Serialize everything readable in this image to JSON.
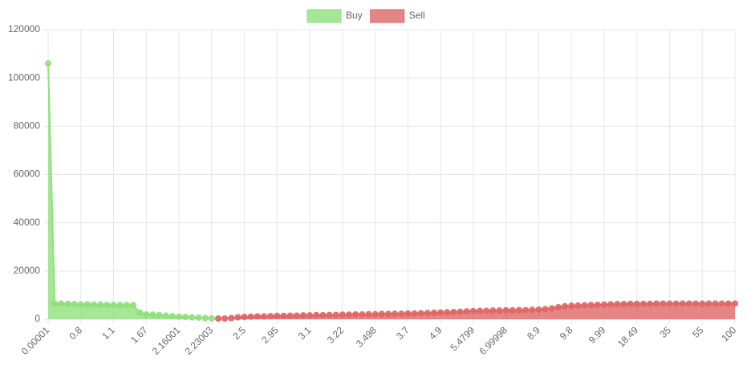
{
  "chart_data": {
    "type": "line",
    "categories": [
      "0.00001",
      null,
      null,
      null,
      null,
      "0.8",
      null,
      null,
      null,
      null,
      "1.1",
      null,
      null,
      null,
      null,
      "1.67",
      null,
      null,
      null,
      null,
      "2.16001",
      null,
      null,
      null,
      null,
      "2.23003",
      null,
      null,
      null,
      null,
      "2.5",
      null,
      null,
      null,
      null,
      "2.95",
      null,
      null,
      null,
      null,
      "3.1",
      null,
      null,
      null,
      null,
      "3.22",
      null,
      null,
      null,
      null,
      "3.498",
      null,
      null,
      null,
      null,
      "3.7",
      null,
      null,
      null,
      null,
      "4.9",
      null,
      null,
      null,
      null,
      "5.4799",
      null,
      null,
      null,
      null,
      "6.99998",
      null,
      null,
      null,
      null,
      "8.9",
      null,
      null,
      null,
      null,
      "9.8",
      null,
      null,
      null,
      null,
      "9.99",
      null,
      null,
      null,
      null,
      "18.49",
      null,
      null,
      null,
      null,
      "35",
      null,
      null,
      null,
      null,
      "55",
      null,
      null,
      null,
      null,
      "100"
    ],
    "series": [
      {
        "name": "Buy",
        "color": "#90e07c",
        "values": [
          106000,
          6500,
          6500,
          6400,
          6300,
          6200,
          6200,
          6100,
          6100,
          6000,
          6000,
          5900,
          5900,
          5900,
          2800,
          2000,
          1900,
          1700,
          1500,
          1300,
          1100,
          1000,
          800,
          700,
          500,
          400,
          null,
          null,
          null,
          null,
          null,
          null,
          null,
          null,
          null,
          null,
          null,
          null,
          null,
          null,
          null,
          null,
          null,
          null,
          null,
          null,
          null,
          null,
          null,
          null,
          null,
          null,
          null,
          null,
          null,
          null,
          null,
          null,
          null,
          null,
          null,
          null,
          null,
          null,
          null,
          null,
          null,
          null,
          null,
          null,
          null,
          null,
          null,
          null,
          null,
          null,
          null,
          null,
          null,
          null,
          null,
          null,
          null,
          null,
          null,
          null,
          null,
          null,
          null,
          null,
          null,
          null,
          null,
          null,
          null,
          null,
          null,
          null,
          null,
          null,
          null,
          null,
          null,
          null,
          null,
          null
        ]
      },
      {
        "name": "Sell",
        "color": "#e06666",
        "values": [
          null,
          null,
          null,
          null,
          null,
          null,
          null,
          null,
          null,
          null,
          null,
          null,
          null,
          null,
          null,
          null,
          null,
          null,
          null,
          null,
          null,
          null,
          null,
          null,
          null,
          null,
          300,
          300,
          500,
          800,
          1000,
          1100,
          1200,
          1200,
          1300,
          1400,
          1400,
          1500,
          1500,
          1600,
          1600,
          1700,
          1700,
          1800,
          1800,
          1900,
          1900,
          2000,
          2000,
          2100,
          2100,
          2200,
          2200,
          2300,
          2300,
          2400,
          2400,
          2500,
          2600,
          2700,
          2800,
          2900,
          3000,
          3100,
          3300,
          3400,
          3500,
          3500,
          3600,
          3600,
          3700,
          3700,
          3800,
          3800,
          3900,
          4000,
          4200,
          4500,
          5000,
          5400,
          5600,
          5700,
          5800,
          5900,
          6000,
          6100,
          6200,
          6300,
          6300,
          6400,
          6400,
          6400,
          6400,
          6500,
          6500,
          6500,
          6500,
          6500,
          6500,
          6500,
          6500,
          6500,
          6500,
          6500,
          6500,
          6500
        ]
      }
    ],
    "ylim": [
      0,
      120000
    ],
    "yticks": [
      0,
      20000,
      40000,
      60000,
      80000,
      100000,
      120000
    ],
    "grid": true
  }
}
